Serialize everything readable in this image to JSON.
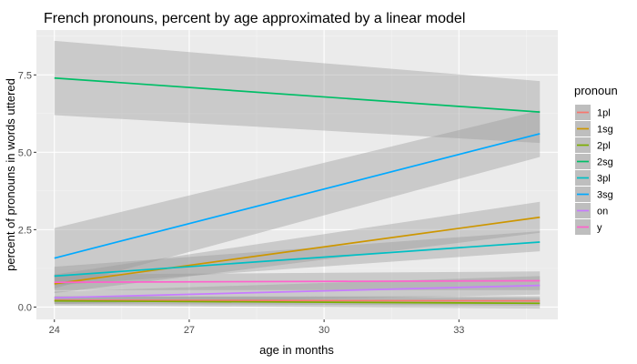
{
  "chart_data": {
    "type": "line",
    "title": "French pronouns, percent by age approximated by a linear model",
    "xlabel": "age in months",
    "ylabel": "percent of pronouns in words uttered",
    "xlim": [
      23.6,
      35.2
    ],
    "ylim": [
      -0.4,
      8.95
    ],
    "x_ticks": [
      24,
      27,
      30,
      33
    ],
    "y_ticks": [
      0.0,
      2.5,
      5.0,
      7.5
    ],
    "x_tick_labels": [
      "24",
      "27",
      "30",
      "33"
    ],
    "y_tick_labels": [
      "0.0",
      "2.5",
      "5.0",
      "7.5"
    ],
    "grid": true,
    "legend": {
      "title": "pronoun",
      "placement": "right"
    },
    "x_range": [
      24,
      34.8
    ],
    "series": [
      {
        "name": "1pl",
        "color": "#F8766D",
        "y": [
          0.22,
          0.2
        ],
        "band_low": [
          0.1,
          0.05
        ],
        "band_high": [
          0.34,
          0.35
        ]
      },
      {
        "name": "1sg",
        "color": "#CD9600",
        "y": [
          0.75,
          2.9
        ],
        "band_low": [
          0.45,
          2.4
        ],
        "band_high": [
          1.05,
          3.4
        ]
      },
      {
        "name": "2pl",
        "color": "#7CAE00",
        "y": [
          0.2,
          0.12
        ],
        "band_low": [
          0.05,
          -0.05
        ],
        "band_high": [
          0.35,
          0.3
        ]
      },
      {
        "name": "2sg",
        "color": "#00BE67",
        "y": [
          7.4,
          6.3
        ],
        "band_low": [
          6.2,
          5.3
        ],
        "band_high": [
          8.6,
          7.3
        ]
      },
      {
        "name": "3pl",
        "color": "#00BFC4",
        "y": [
          1.0,
          2.1
        ],
        "band_low": [
          0.7,
          1.8
        ],
        "band_high": [
          1.3,
          2.45
        ]
      },
      {
        "name": "3sg",
        "color": "#00A9FF",
        "y": [
          1.58,
          5.6
        ],
        "band_low": [
          0.6,
          4.85
        ],
        "band_high": [
          2.55,
          6.35
        ]
      },
      {
        "name": "on",
        "color": "#C77CFF",
        "y": [
          0.3,
          0.7
        ],
        "band_low": [
          0.1,
          0.4
        ],
        "band_high": [
          0.5,
          1.0
        ]
      },
      {
        "name": "y",
        "color": "#FF61CC",
        "y": [
          0.8,
          0.85
        ],
        "band_low": [
          0.55,
          0.55
        ],
        "band_high": [
          1.05,
          1.15
        ]
      }
    ]
  }
}
